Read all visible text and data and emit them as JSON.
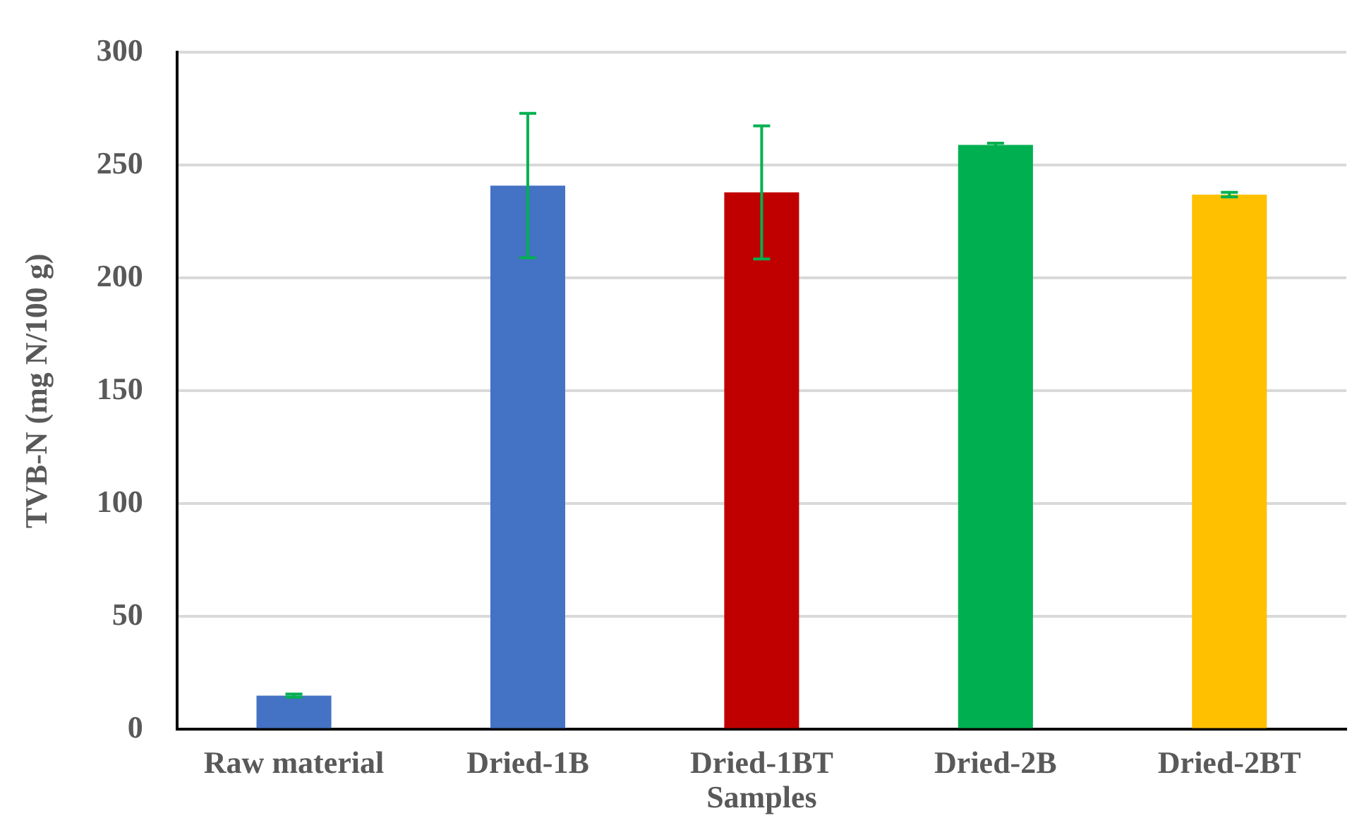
{
  "chart_data": {
    "type": "bar",
    "xlabel": "Samples",
    "ylabel": "TVB-N (mg N/100 g)",
    "categories": [
      "Raw material",
      "Dried-1B",
      "Dried-1BT",
      "Dried-2B",
      "Dried-2BT"
    ],
    "values": [
      15,
      241,
      238,
      259,
      237
    ],
    "colors": [
      "#4472c4",
      "#4472c4",
      "#c00000",
      "#00b050",
      "#ffc000"
    ],
    "errors": [
      0.7,
      32,
      29.5,
      0.8,
      1
    ],
    "ylim": [
      0,
      300
    ],
    "yticks": [
      0,
      50,
      100,
      150,
      200,
      250,
      300
    ],
    "grid": "y"
  }
}
